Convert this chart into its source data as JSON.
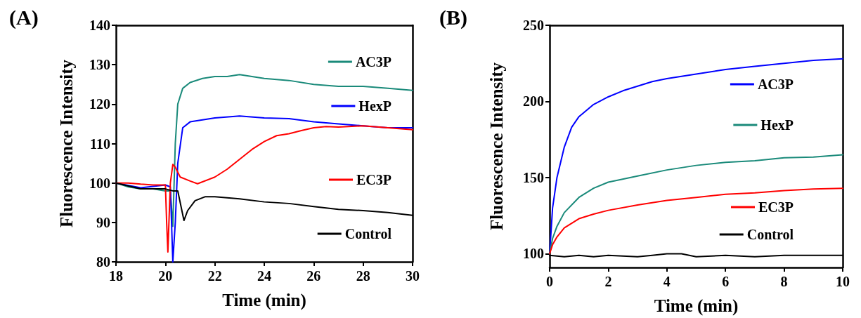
{
  "chart_data": [
    {
      "type": "line",
      "title": "(A)",
      "xlabel": "Time (min)",
      "ylabel": "Fluorescence Intensity",
      "xlim": [
        18,
        30
      ],
      "xticks": [
        18,
        20,
        22,
        24,
        26,
        28,
        30
      ],
      "ylim": [
        80,
        140
      ],
      "yticks": [
        80,
        90,
        100,
        110,
        120,
        130,
        140
      ],
      "grid": false,
      "legend": "right",
      "marker": "none",
      "line_style": "solid",
      "series": [
        {
          "name": "AC3P",
          "color": "#1a8a7a",
          "x": [
            18,
            18.5,
            19,
            19.5,
            20,
            20.2,
            20.3,
            20.4,
            20.5,
            20.7,
            21,
            21.5,
            22,
            22.5,
            23,
            23.5,
            24,
            25,
            26,
            27,
            28,
            29,
            30
          ],
          "values": [
            100,
            99,
            98.5,
            98.5,
            98,
            98,
            89,
            110,
            120,
            124,
            125.5,
            126.5,
            127,
            127,
            127.5,
            127,
            126.5,
            126,
            125,
            124.5,
            124.5,
            124,
            123.5
          ]
        },
        {
          "name": "HexP",
          "color": "#0000ff",
          "x": [
            18,
            19,
            20,
            20.2,
            20.3,
            20.4,
            20.5,
            20.7,
            21,
            22,
            23,
            24,
            25,
            26,
            27,
            28,
            29,
            30
          ],
          "values": [
            100,
            98.8,
            99.5,
            99,
            80,
            90,
            105,
            114,
            115.5,
            116.5,
            117,
            116.5,
            116.3,
            115.5,
            115,
            114.5,
            114,
            114
          ]
        },
        {
          "name": "EC3P",
          "color": "#ff0000",
          "x": [
            18,
            18.5,
            19,
            19.5,
            20,
            20.05,
            20.1,
            20.2,
            20.3,
            20.4,
            20.6,
            21,
            21.3,
            22,
            22.5,
            23,
            23.5,
            24,
            24.5,
            25,
            25.5,
            26,
            26.5,
            27,
            28,
            29,
            30
          ],
          "values": [
            100,
            100,
            99.7,
            99.5,
            99.5,
            90,
            82.5,
            100,
            104.7,
            104,
            101.5,
            100.5,
            99.8,
            101.5,
            103.5,
            106,
            108.5,
            110.5,
            112,
            112.5,
            113.3,
            114,
            114.3,
            114.2,
            114.5,
            114,
            113.5
          ]
        },
        {
          "name": "Control",
          "color": "#000000",
          "x": [
            18,
            19,
            20,
            20.3,
            20.5,
            20.6,
            20.75,
            20.9,
            21.2,
            21.6,
            22,
            23,
            24,
            25,
            26,
            27,
            28,
            29,
            30
          ],
          "values": [
            100,
            98.5,
            98.5,
            98,
            98,
            95,
            90.5,
            93,
            95.5,
            96.5,
            96.5,
            96,
            95.2,
            94.8,
            94,
            93.3,
            93,
            92.5,
            91.8
          ]
        }
      ]
    },
    {
      "type": "line",
      "title": "(B)",
      "xlabel": "Time (min)",
      "ylabel": "Fluorescence Intensity",
      "xlim": [
        0,
        10
      ],
      "xticks": [
        0,
        2,
        4,
        6,
        8,
        10
      ],
      "ylim": [
        91,
        250
      ],
      "yticks": [
        100,
        150,
        200,
        250
      ],
      "grid": false,
      "legend": "right",
      "marker": "none",
      "line_style": "solid",
      "series": [
        {
          "name": "AC3P",
          "color": "#0000ff",
          "x": [
            0,
            0.1,
            0.25,
            0.5,
            0.75,
            1,
            1.5,
            2,
            2.5,
            3,
            3.5,
            4,
            5,
            6,
            7,
            8,
            9,
            10
          ],
          "values": [
            100,
            130,
            150,
            170,
            183,
            190,
            198,
            203,
            207,
            210,
            213,
            215,
            218,
            221,
            223,
            225,
            227,
            228
          ]
        },
        {
          "name": "HexP",
          "color": "#1a8a7a",
          "x": [
            0,
            0.1,
            0.25,
            0.5,
            1,
            1.5,
            2,
            3,
            4,
            5,
            6,
            7,
            8,
            9,
            10
          ],
          "values": [
            100,
            110,
            118,
            127,
            137,
            143,
            147,
            151,
            155,
            158,
            160,
            161,
            163,
            163.5,
            165
          ]
        },
        {
          "name": "EC3P",
          "color": "#ff0000",
          "x": [
            0,
            0.1,
            0.25,
            0.5,
            1,
            1.5,
            2,
            3,
            4,
            5,
            6,
            7,
            8,
            9,
            10
          ],
          "values": [
            100,
            106,
            111,
            117,
            123,
            126,
            128.5,
            132,
            135,
            137,
            139,
            140,
            141.5,
            142.5,
            143
          ]
        },
        {
          "name": "Control",
          "color": "#000000",
          "x": [
            0,
            0.5,
            1,
            1.5,
            2,
            3,
            3.5,
            4,
            4.5,
            5,
            6,
            7,
            8,
            9,
            10
          ],
          "values": [
            99,
            98,
            99,
            98,
            99,
            98,
            99,
            100,
            100,
            98,
            99,
            98,
            99,
            99,
            99
          ]
        }
      ]
    }
  ]
}
